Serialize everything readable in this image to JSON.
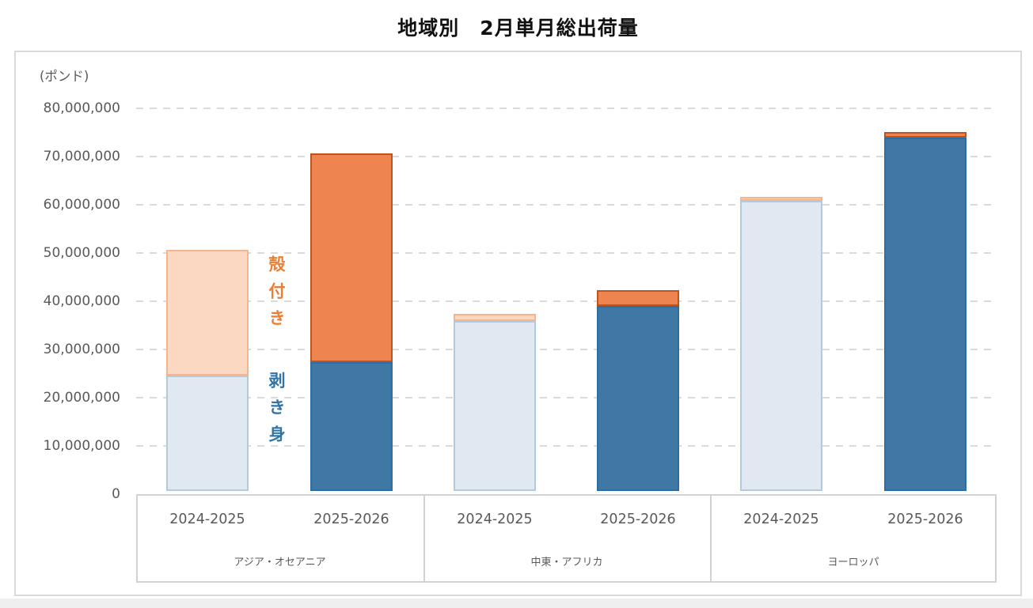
{
  "title": "地域別　2月単月総出荷量",
  "y_axis": {
    "unit_label": "(ポンド)",
    "tick_labels": [
      "80,000,000",
      "70,000,000",
      "60,000,000",
      "50,000,000",
      "40,000,000",
      "30,000,000",
      "20,000,000",
      "10,000,000",
      "0"
    ]
  },
  "annotations": {
    "in_shell": {
      "text": "殻付き",
      "color": "#ed7d31"
    },
    "shelled": {
      "text": "剥き身",
      "color": "#2f74a8"
    }
  },
  "palette": {
    "light": {
      "shelled_fill": "#e0e9f1",
      "shelled_border": "#b3c9dc",
      "in_shell_fill": "#fbd8c2",
      "in_shell_border": "#f6b58c"
    },
    "dark": {
      "shelled_fill": "#3f77a5",
      "shelled_border": "#2e6da4",
      "in_shell_fill": "#ee8550",
      "in_shell_border": "#c0521c"
    }
  },
  "chart_data": {
    "type": "bar",
    "stacked": true,
    "title": "地域別　2月単月総出荷量",
    "ylabel": "(ポンド)",
    "ylim": [
      0,
      80000000
    ],
    "ytick_interval": 10000000,
    "grid": "horizontal-dashed",
    "legend_position": "inline-annotation-between-first-group-bars",
    "series": [
      {
        "id": "shelled",
        "name": "剥き身",
        "stack_position": "bottom"
      },
      {
        "id": "in_shell",
        "name": "殻付き",
        "stack_position": "top"
      }
    ],
    "groups": [
      {
        "region": "アジア・オセアニア",
        "bars": [
          {
            "year": "2024-2025",
            "variant": "light",
            "shelled": 24000000,
            "in_shell": 26000000,
            "total": 50000000
          },
          {
            "year": "2025-2026",
            "variant": "dark",
            "shelled": 26800000,
            "in_shell": 43200000,
            "total": 70000000
          }
        ]
      },
      {
        "region": "中東・アフリカ",
        "bars": [
          {
            "year": "2024-2025",
            "variant": "light",
            "shelled": 35200000,
            "in_shell": 1500000,
            "total": 36700000
          },
          {
            "year": "2025-2026",
            "variant": "dark",
            "shelled": 38400000,
            "in_shell": 3200000,
            "total": 41600000
          }
        ]
      },
      {
        "region": "ヨーロッパ",
        "bars": [
          {
            "year": "2024-2025",
            "variant": "light",
            "shelled": 60200000,
            "in_shell": 800000,
            "total": 61000000
          },
          {
            "year": "2025-2026",
            "variant": "dark",
            "shelled": 73300000,
            "in_shell": 1200000,
            "total": 74500000
          }
        ]
      }
    ]
  }
}
